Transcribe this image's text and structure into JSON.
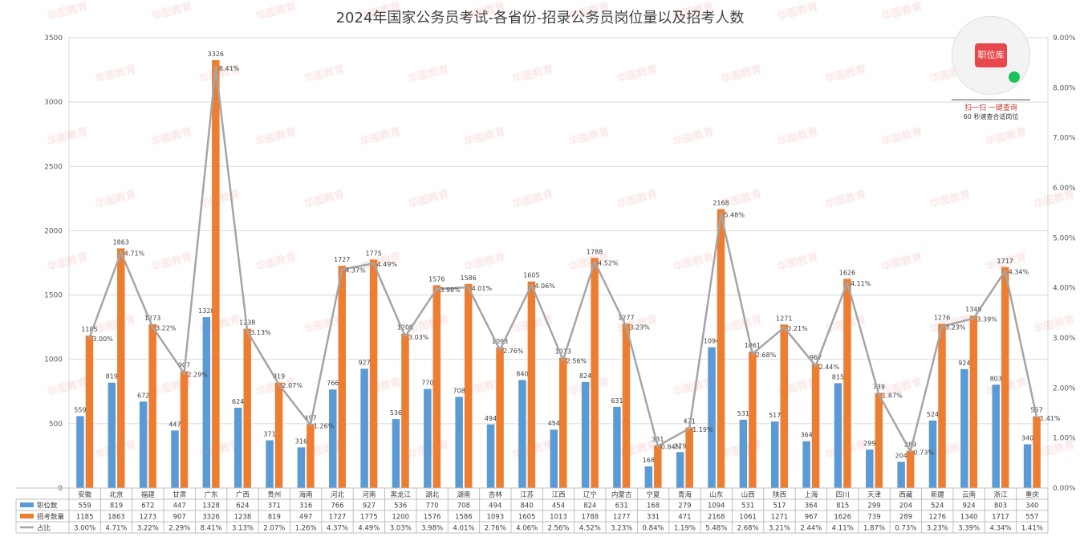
{
  "chart_data": {
    "type": "bar",
    "title": "2024年国家公务员考试-各省份-招录公务员岗位量以及招考人数",
    "categories": [
      "安徽",
      "北京",
      "福建",
      "甘肃",
      "广东",
      "广西",
      "贵州",
      "海南",
      "河北",
      "河南",
      "黑龙江",
      "湖北",
      "湖南",
      "吉林",
      "江苏",
      "江西",
      "辽宁",
      "内蒙古",
      "宁夏",
      "青海",
      "山东",
      "山西",
      "陕西",
      "上海",
      "四川",
      "天津",
      "西藏",
      "新疆",
      "云南",
      "浙江",
      "重庆"
    ],
    "series": [
      {
        "name": "职位数",
        "type": "bar",
        "color": "#5b9bd5",
        "values": [
          559,
          819,
          672,
          447,
          1328,
          624,
          371,
          316,
          766,
          927,
          536,
          770,
          708,
          494,
          840,
          454,
          824,
          631,
          168,
          279,
          1094,
          531,
          517,
          364,
          815,
          299,
          204,
          524,
          924,
          803,
          340
        ]
      },
      {
        "name": "招考数量",
        "type": "bar",
        "color": "#ed7d31",
        "values": [
          1185,
          1863,
          1273,
          907,
          3326,
          1238,
          819,
          497,
          1727,
          1775,
          1200,
          1576,
          1586,
          1093,
          1605,
          1013,
          1788,
          1277,
          331,
          471,
          2168,
          1061,
          1271,
          967,
          1626,
          739,
          289,
          1276,
          1340,
          1717,
          557
        ]
      },
      {
        "name": "占比",
        "type": "line",
        "color": "#a5a5a5",
        "labels": [
          "3.00%",
          "4.71%",
          "3.22%",
          "2.29%",
          "8.41%",
          "3.13%",
          "2.07%",
          "1.26%",
          "4.37%",
          "4.49%",
          "3.03%",
          "3.98%",
          "4.01%",
          "2.76%",
          "4.06%",
          "2.56%",
          "4.52%",
          "3.23%",
          "0.84%",
          "1.19%",
          "5.48%",
          "2.68%",
          "3.21%",
          "2.44%",
          "4.11%",
          "1.87%",
          "0.73%",
          "3.23%",
          "3.39%",
          "4.34%",
          "1.41%"
        ],
        "values": [
          3.0,
          4.71,
          3.22,
          2.29,
          8.41,
          3.13,
          2.07,
          1.26,
          4.37,
          4.49,
          3.03,
          3.98,
          4.01,
          2.76,
          4.06,
          2.56,
          4.52,
          3.23,
          0.84,
          1.19,
          5.48,
          2.68,
          3.21,
          2.44,
          4.11,
          1.87,
          0.73,
          3.23,
          3.39,
          4.34,
          1.41
        ]
      }
    ],
    "y_left": {
      "min": 0,
      "max": 3500,
      "ticks": [
        "0",
        "500",
        "1000",
        "1500",
        "2000",
        "2500",
        "3000",
        "3500"
      ]
    },
    "y_right": {
      "min": 0,
      "max": 9,
      "ticks": [
        "0.00%",
        "1.00%",
        "2.00%",
        "3.00%",
        "4.00%",
        "5.00%",
        "6.00%",
        "7.00%",
        "8.00%",
        "9.00%"
      ]
    },
    "grid": true,
    "legend": "data-table-bottom"
  },
  "watermark": "华图教育",
  "qr": {
    "badge": "职位库",
    "line1": "扫一扫 一键查询",
    "line2": "60 秒速查合适岗位"
  }
}
